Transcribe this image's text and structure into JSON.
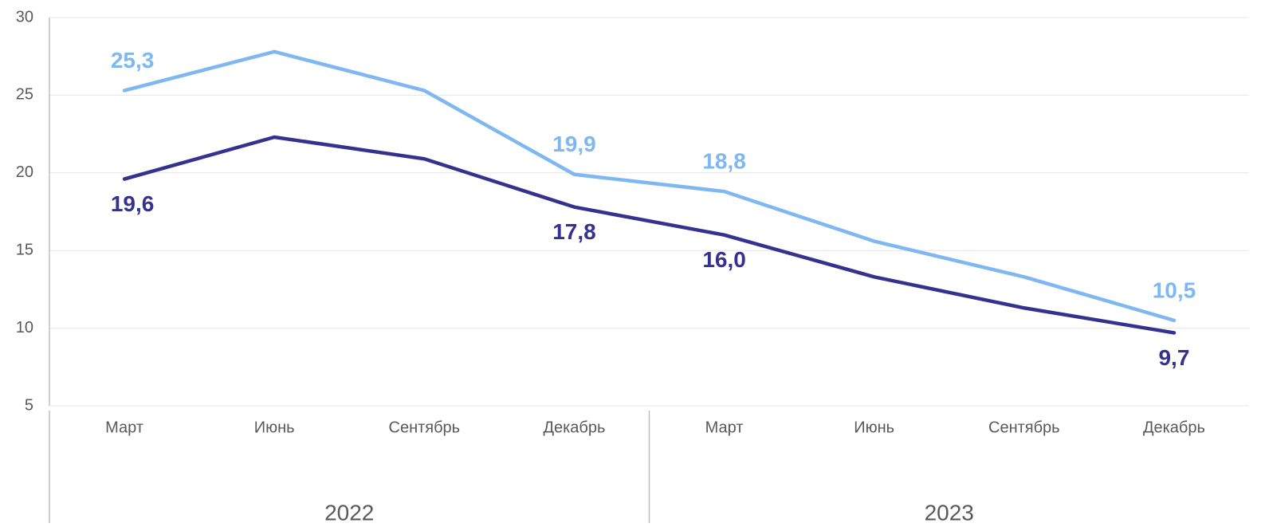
{
  "chart_data": {
    "type": "line",
    "groups": [
      {
        "label": "2022",
        "categories": [
          "Март",
          "Июнь",
          "Сентябрь",
          "Декабрь"
        ]
      },
      {
        "label": "2023",
        "categories": [
          "Март",
          "Июнь",
          "Сентябрь",
          "Декабрь"
        ]
      }
    ],
    "series": [
      {
        "color": "#7fb8f0",
        "values": [
          25.3,
          27.8,
          25.3,
          19.9,
          18.8,
          15.6,
          13.3,
          10.5
        ],
        "value_labels": [
          "25,3",
          null,
          null,
          "19,9",
          "18,8",
          null,
          null,
          "10,5"
        ],
        "label_position": "above"
      },
      {
        "color": "#35318f",
        "values": [
          19.6,
          22.3,
          20.9,
          17.8,
          16.0,
          13.3,
          11.3,
          9.7
        ],
        "value_labels": [
          "19,6",
          null,
          null,
          "17,8",
          "16,0",
          null,
          null,
          "9,7"
        ],
        "label_position": "below"
      }
    ],
    "ylim": [
      5,
      30
    ],
    "yticks": [
      5,
      10,
      15,
      20,
      25,
      30
    ],
    "grid": true
  }
}
